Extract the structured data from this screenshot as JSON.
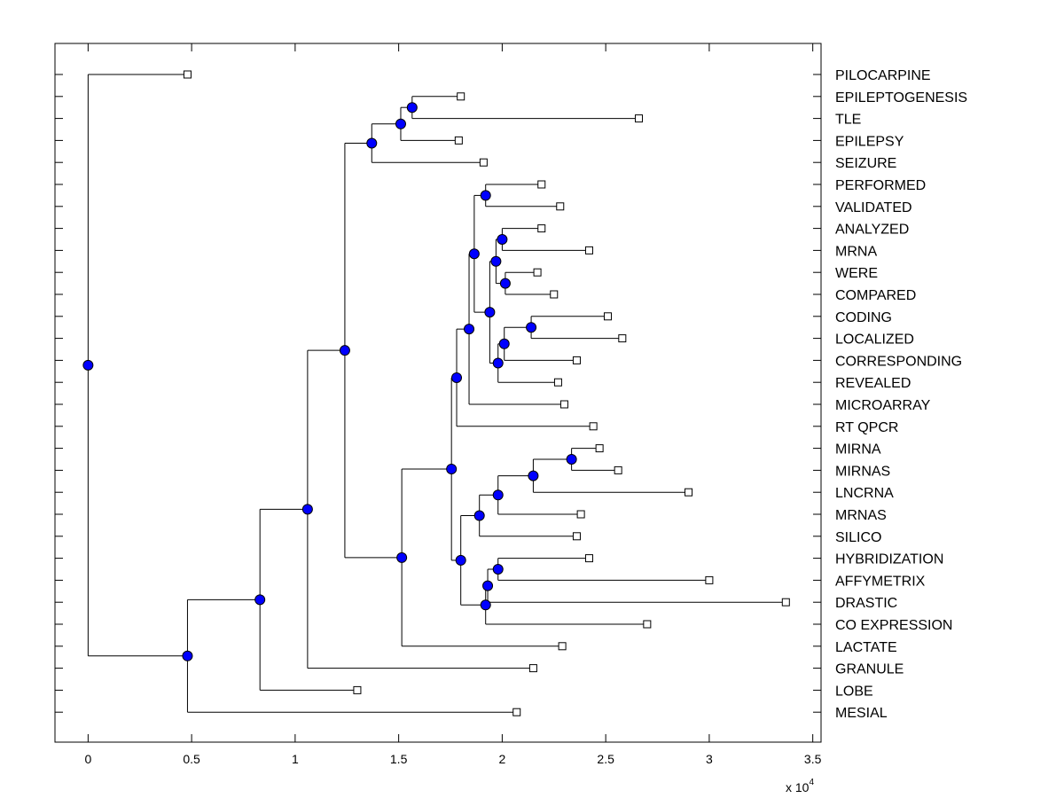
{
  "chart_data": {
    "type": "dendrogram",
    "title": "",
    "xlabel": "",
    "ylabel": "",
    "xlim": [
      -0.16,
      3.54
    ],
    "x_ticks": [
      0,
      0.5,
      1,
      1.5,
      2,
      2.5,
      3,
      3.5
    ],
    "x_tick_labels": [
      "0",
      "0.5",
      "1",
      "1.5",
      "2",
      "2.5",
      "3",
      "3.5"
    ],
    "x_scale_label": "x 10",
    "x_scale_exponent": "4",
    "grid": false,
    "colors": {
      "node_fill": "#0000ff",
      "line": "#000000",
      "leaf_fill": "#ffffff"
    },
    "leaves": [
      {
        "label": "PILOCARPINE",
        "x": 0.48
      },
      {
        "label": "EPILEPTOGENESIS",
        "x": 1.8
      },
      {
        "label": "TLE",
        "x": 2.66
      },
      {
        "label": "EPILEPSY",
        "x": 1.79
      },
      {
        "label": "SEIZURE",
        "x": 1.91
      },
      {
        "label": "PERFORMED",
        "x": 2.19
      },
      {
        "label": "VALIDATED",
        "x": 2.28
      },
      {
        "label": "ANALYZED",
        "x": 2.19
      },
      {
        "label": "MRNA",
        "x": 2.42
      },
      {
        "label": "WERE",
        "x": 2.17
      },
      {
        "label": "COMPARED",
        "x": 2.25
      },
      {
        "label": "CODING",
        "x": 2.51
      },
      {
        "label": "LOCALIZED",
        "x": 2.58
      },
      {
        "label": "CORRESPONDING",
        "x": 2.36
      },
      {
        "label": "REVEALED",
        "x": 2.27
      },
      {
        "label": "MICROARRAY",
        "x": 2.3
      },
      {
        "label": "RT QPCR",
        "x": 2.44
      },
      {
        "label": "MIRNA",
        "x": 2.47
      },
      {
        "label": "MIRNAS",
        "x": 2.56
      },
      {
        "label": "LNCRNA",
        "x": 2.9
      },
      {
        "label": "MRNAS",
        "x": 2.38
      },
      {
        "label": "SILICO",
        "x": 2.36
      },
      {
        "label": "HYBRIDIZATION",
        "x": 2.42
      },
      {
        "label": "AFFYMETRIX",
        "x": 3.0
      },
      {
        "label": "DRASTIC",
        "x": 3.37
      },
      {
        "label": "CO EXPRESSION",
        "x": 2.7
      },
      {
        "label": "LACTATE",
        "x": 2.29
      },
      {
        "label": "GRANULE",
        "x": 2.15
      },
      {
        "label": "LOBE",
        "x": 1.3
      },
      {
        "label": "MESIAL",
        "x": 2.07
      }
    ],
    "nodes": [
      {
        "id": "n_ep",
        "x": 1.565,
        "children": [
          "L1",
          "L2"
        ]
      },
      {
        "id": "n_ep2",
        "x": 1.51,
        "children": [
          "n_ep",
          "L3"
        ]
      },
      {
        "id": "n_epi",
        "x": 1.37,
        "children": [
          "n_ep2",
          "L4"
        ]
      },
      {
        "id": "n_pv",
        "x": 1.92,
        "children": [
          "L5",
          "L6"
        ]
      },
      {
        "id": "n_am",
        "x": 2.0,
        "children": [
          "L7",
          "L8"
        ]
      },
      {
        "id": "n_wc",
        "x": 2.015,
        "children": [
          "L9",
          "L10"
        ]
      },
      {
        "id": "n_amwc",
        "x": 1.97,
        "children": [
          "n_am",
          "n_wc"
        ]
      },
      {
        "id": "n_cl",
        "x": 2.14,
        "children": [
          "L11",
          "L12"
        ]
      },
      {
        "id": "n_clc",
        "x": 2.01,
        "children": [
          "n_cl",
          "L13"
        ]
      },
      {
        "id": "n_clcr",
        "x": 1.98,
        "children": [
          "n_clc",
          "L14"
        ]
      },
      {
        "id": "n_mid",
        "x": 1.94,
        "children": [
          "n_amwc",
          "n_clcr"
        ]
      },
      {
        "id": "n_top",
        "x": 1.865,
        "children": [
          "n_pv",
          "n_mid"
        ]
      },
      {
        "id": "n_topmi",
        "x": 1.84,
        "children": [
          "n_top",
          "L15"
        ]
      },
      {
        "id": "n_toprt",
        "x": 1.78,
        "children": [
          "n_topmi",
          "L16"
        ]
      },
      {
        "id": "n_mir",
        "x": 2.335,
        "children": [
          "L17",
          "L18"
        ]
      },
      {
        "id": "n_mirl",
        "x": 2.15,
        "children": [
          "n_mir",
          "L19"
        ]
      },
      {
        "id": "n_mirlm",
        "x": 1.98,
        "children": [
          "n_mirl",
          "L20"
        ]
      },
      {
        "id": "n_mirlms",
        "x": 1.89,
        "children": [
          "n_mirlm",
          "L21"
        ]
      },
      {
        "id": "n_ha",
        "x": 1.98,
        "children": [
          "L22",
          "L23"
        ]
      },
      {
        "id": "n_had",
        "x": 1.93,
        "children": [
          "n_ha",
          "L24"
        ]
      },
      {
        "id": "n_hadc",
        "x": 1.92,
        "children": [
          "n_had",
          "L25"
        ]
      },
      {
        "id": "n_bot",
        "x": 1.8,
        "children": [
          "n_mirlms",
          "n_hadc"
        ]
      },
      {
        "id": "n_big",
        "x": 1.755,
        "children": [
          "n_toprt",
          "n_bot"
        ]
      },
      {
        "id": "n_bigl",
        "x": 1.515,
        "children": [
          "n_big",
          "L26"
        ]
      },
      {
        "id": "n_main",
        "x": 1.24,
        "children": [
          "n_epi",
          "n_bigl"
        ]
      },
      {
        "id": "n_maing",
        "x": 1.06,
        "children": [
          "n_main",
          "L27"
        ]
      },
      {
        "id": "n_maingl",
        "x": 0.83,
        "children": [
          "n_maing",
          "L28"
        ]
      },
      {
        "id": "n_root2",
        "x": 0.48,
        "children": [
          "n_maingl",
          "L29"
        ]
      },
      {
        "id": "n_root",
        "x": 0.0,
        "children": [
          "L0",
          "n_root2"
        ]
      }
    ]
  }
}
